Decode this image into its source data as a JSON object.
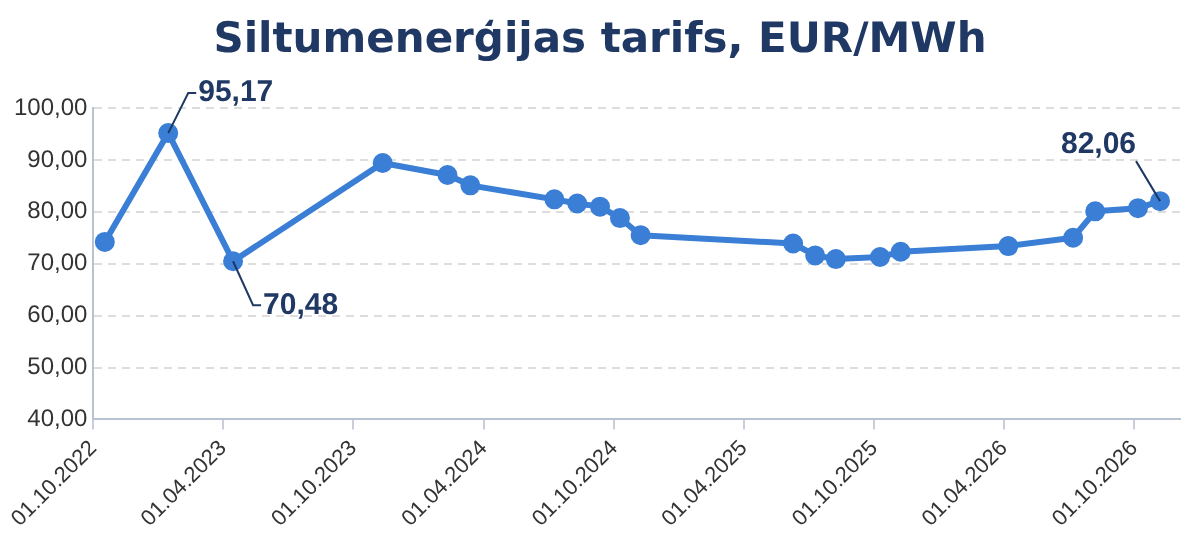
{
  "chart_data": {
    "type": "line",
    "title": "Siltumenerģijas tarifs, EUR/MWh",
    "x": [
      "2022-10-17",
      "2023-01-14",
      "2023-04-15",
      "2023-11-11",
      "2024-02-10",
      "2024-03-13",
      "2024-07-09",
      "2024-08-10",
      "2024-09-11",
      "2024-10-09",
      "2024-11-07",
      "2025-06-09",
      "2025-07-10",
      "2025-08-08",
      "2025-10-09",
      "2025-11-07",
      "2026-04-07",
      "2026-07-07",
      "2026-08-07",
      "2026-10-06",
      "2026-11-06"
    ],
    "series": [
      {
        "color": "#3a7fd5",
        "values": [
          74.2,
          95.17,
          70.48,
          89.4,
          87.1,
          85.1,
          82.4,
          81.6,
          81.0,
          78.8,
          75.5,
          73.9,
          71.6,
          70.9,
          71.3,
          72.3,
          73.4,
          75.0,
          80.1,
          80.7,
          82.06
        ]
      }
    ],
    "annotations": [
      {
        "text": "95,17",
        "x": "2023-01-14",
        "y": 95.17
      },
      {
        "text": "70,48",
        "x": "2023-04-15",
        "y": 70.48
      },
      {
        "text": "82,06",
        "x": "2026-11-06",
        "y": 82.06
      }
    ],
    "xlim": [
      "2022-10-01",
      "2026-12-04"
    ],
    "xticks": [
      {
        "value": "2022-10-01",
        "label": "01.10.2022"
      },
      {
        "value": "2023-04-01",
        "label": "01.04.2023"
      },
      {
        "value": "2023-10-01",
        "label": "01.10.2023"
      },
      {
        "value": "2024-04-01",
        "label": "01.04.2024"
      },
      {
        "value": "2024-10-01",
        "label": "01.10.2024"
      },
      {
        "value": "2025-04-01",
        "label": "01.04.2025"
      },
      {
        "value": "2025-10-01",
        "label": "01.10.2025"
      },
      {
        "value": "2026-04-01",
        "label": "01.04.2026"
      },
      {
        "value": "2026-10-01",
        "label": "01.10.2026"
      }
    ],
    "ylim": [
      40,
      100
    ],
    "yticks": [
      {
        "value": 40,
        "label": "40,00"
      },
      {
        "value": 50,
        "label": "50,00"
      },
      {
        "value": 60,
        "label": "60,00"
      },
      {
        "value": 70,
        "label": "70,00"
      },
      {
        "value": 80,
        "label": "80,00"
      },
      {
        "value": 90,
        "label": "90,00"
      },
      {
        "value": 100,
        "label": "100,00"
      }
    ],
    "grid": "y",
    "legend": false,
    "marker": "circle",
    "line_style": "solid"
  }
}
